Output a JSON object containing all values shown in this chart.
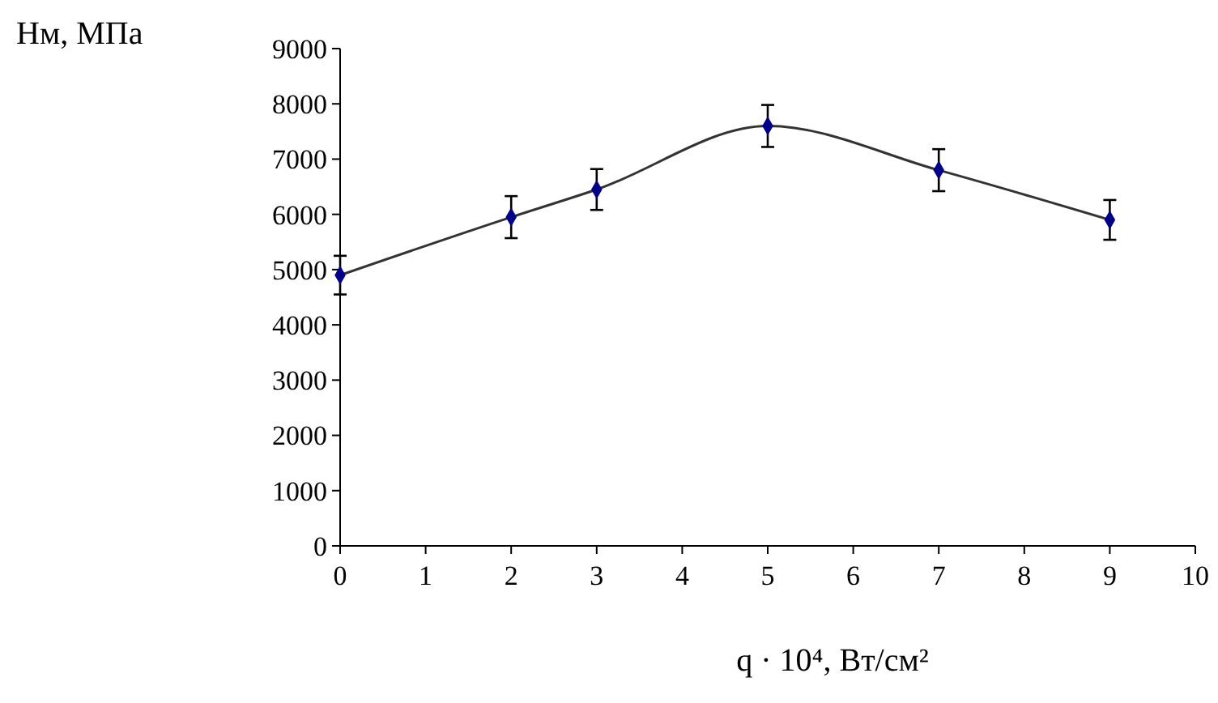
{
  "chart_data": {
    "type": "line",
    "xlabel": "q · 10⁴, Вт/см²",
    "ylabel": "Нм, МПа",
    "x": [
      0,
      2,
      3,
      5,
      7,
      9
    ],
    "series": [
      {
        "color": "#00008b",
        "values": [
          4900,
          5950,
          6450,
          7600,
          6800,
          5900
        ],
        "errors": [
          350,
          380,
          370,
          380,
          380,
          360
        ]
      }
    ],
    "xlim": [
      0,
      10
    ],
    "xticks": [
      0,
      1,
      2,
      3,
      4,
      5,
      6,
      7,
      8,
      9,
      10
    ],
    "ylim": [
      0,
      9000
    ],
    "yticks": [
      0,
      1000,
      2000,
      3000,
      4000,
      5000,
      6000,
      7000,
      8000,
      9000
    ],
    "grid": false,
    "marker": "diamond",
    "line_style": "solid"
  }
}
